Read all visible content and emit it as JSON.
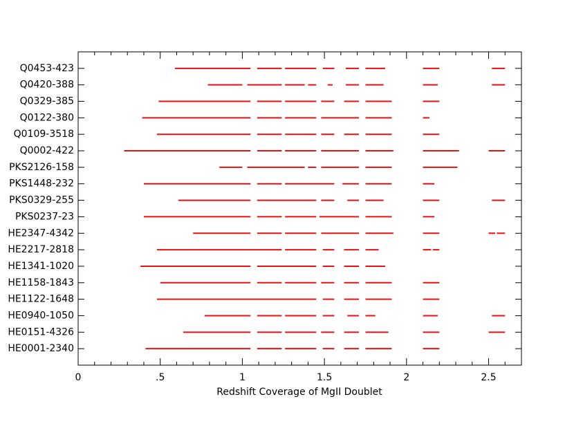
{
  "chart_data": {
    "type": "range",
    "xlabel": "Redshift Coverage of MgII Doublet",
    "color": "#e81010",
    "categories": [
      "Q0453-423",
      "Q0420-388",
      "Q0329-385",
      "Q0122-380",
      "Q0109-3518",
      "Q0002-422",
      "PKS2126-158",
      "PKS1448-232",
      "PKS0329-255",
      "PKS0237-23",
      "HE2347-4342",
      "HE2217-2818",
      "HE1341-1020",
      "HE1158-1843",
      "HE1122-1648",
      "HE0940-1050",
      "HE0151-4326",
      "HE0001-2340"
    ],
    "values": [
      [
        [
          0.59,
          1.05
        ],
        [
          1.09,
          1.24
        ],
        [
          1.26,
          1.45
        ],
        [
          1.49,
          1.56
        ],
        [
          1.63,
          1.71
        ],
        [
          1.75,
          1.87
        ],
        [
          2.1,
          2.2
        ],
        [
          2.52,
          2.6
        ]
      ],
      [
        [
          0.79,
          1.0
        ],
        [
          1.03,
          1.24
        ],
        [
          1.26,
          1.38
        ],
        [
          1.4,
          1.45
        ],
        [
          1.52,
          1.55
        ],
        [
          1.63,
          1.71
        ],
        [
          1.75,
          1.86
        ],
        [
          2.1,
          2.19
        ],
        [
          2.52,
          2.6
        ]
      ],
      [
        [
          0.49,
          1.05
        ],
        [
          1.09,
          1.24
        ],
        [
          1.26,
          1.45
        ],
        [
          1.48,
          1.56
        ],
        [
          1.62,
          1.71
        ],
        [
          1.75,
          1.91
        ],
        [
          2.1,
          2.2
        ]
      ],
      [
        [
          0.39,
          1.05
        ],
        [
          1.09,
          1.24
        ],
        [
          1.26,
          1.45
        ],
        [
          1.48,
          1.71
        ],
        [
          1.75,
          1.91
        ],
        [
          2.1,
          2.14
        ]
      ],
      [
        [
          0.48,
          1.05
        ],
        [
          1.09,
          1.24
        ],
        [
          1.26,
          1.45
        ],
        [
          1.48,
          1.56
        ],
        [
          1.62,
          1.71
        ],
        [
          1.75,
          1.91
        ],
        [
          2.1,
          2.2
        ]
      ],
      [
        [
          0.28,
          1.05
        ],
        [
          1.09,
          1.24
        ],
        [
          1.26,
          1.45
        ],
        [
          1.48,
          1.71
        ],
        [
          1.75,
          1.92
        ],
        [
          2.1,
          2.32
        ],
        [
          2.5,
          2.6
        ]
      ],
      [
        [
          0.86,
          1.0
        ],
        [
          1.03,
          1.38
        ],
        [
          1.4,
          1.45
        ],
        [
          1.48,
          1.71
        ],
        [
          1.75,
          1.91
        ],
        [
          2.1,
          2.31
        ]
      ],
      [
        [
          0.4,
          1.05
        ],
        [
          1.09,
          1.24
        ],
        [
          1.26,
          1.56
        ],
        [
          1.61,
          1.71
        ],
        [
          1.75,
          1.91
        ],
        [
          2.1,
          2.17
        ]
      ],
      [
        [
          0.61,
          1.05
        ],
        [
          1.09,
          1.45
        ],
        [
          1.48,
          1.56
        ],
        [
          1.64,
          1.71
        ],
        [
          1.75,
          1.86
        ],
        [
          2.1,
          2.2
        ],
        [
          2.52,
          2.6
        ]
      ],
      [
        [
          0.4,
          1.05
        ],
        [
          1.09,
          1.24
        ],
        [
          1.26,
          1.45
        ],
        [
          1.47,
          1.71
        ],
        [
          1.75,
          1.91
        ],
        [
          2.1,
          2.17
        ]
      ],
      [
        [
          0.7,
          1.05
        ],
        [
          1.09,
          1.24
        ],
        [
          1.26,
          1.45
        ],
        [
          1.48,
          1.71
        ],
        [
          1.75,
          1.92
        ],
        [
          2.1,
          2.2
        ],
        [
          2.5,
          2.54
        ],
        [
          2.55,
          2.6
        ]
      ],
      [
        [
          0.48,
          1.24
        ],
        [
          1.26,
          1.45
        ],
        [
          1.49,
          1.56
        ],
        [
          1.62,
          1.71
        ],
        [
          1.75,
          1.83
        ],
        [
          2.1,
          2.15
        ],
        [
          2.16,
          2.2
        ]
      ],
      [
        [
          0.38,
          1.05
        ],
        [
          1.09,
          1.45
        ],
        [
          1.49,
          1.56
        ],
        [
          1.62,
          1.71
        ],
        [
          1.75,
          1.87
        ]
      ],
      [
        [
          0.5,
          1.05
        ],
        [
          1.09,
          1.24
        ],
        [
          1.26,
          1.45
        ],
        [
          1.48,
          1.56
        ],
        [
          1.62,
          1.71
        ],
        [
          1.75,
          1.91
        ],
        [
          2.1,
          2.2
        ]
      ],
      [
        [
          0.48,
          1.45
        ],
        [
          1.49,
          1.56
        ],
        [
          1.62,
          1.71
        ],
        [
          1.75,
          1.91
        ],
        [
          2.1,
          2.2
        ]
      ],
      [
        [
          0.77,
          1.05
        ],
        [
          1.09,
          1.24
        ],
        [
          1.26,
          1.45
        ],
        [
          1.49,
          1.56
        ],
        [
          1.64,
          1.71
        ],
        [
          1.75,
          1.81
        ],
        [
          2.1,
          2.19
        ],
        [
          2.52,
          2.6
        ]
      ],
      [
        [
          0.64,
          1.05
        ],
        [
          1.09,
          1.24
        ],
        [
          1.26,
          1.45
        ],
        [
          1.48,
          1.56
        ],
        [
          1.62,
          1.71
        ],
        [
          1.75,
          1.89
        ],
        [
          2.1,
          2.2
        ],
        [
          2.5,
          2.6
        ]
      ],
      [
        [
          0.41,
          1.05
        ],
        [
          1.09,
          1.24
        ],
        [
          1.26,
          1.45
        ],
        [
          1.49,
          1.56
        ],
        [
          1.62,
          1.71
        ],
        [
          1.75,
          1.91
        ],
        [
          2.1,
          2.2
        ]
      ]
    ],
    "xlim": [
      0,
      2.7
    ],
    "xticks": [
      0,
      {
        "value": 0.5,
        "label": ".5"
      },
      1,
      1.5,
      2,
      2.5
    ],
    "xminorticks": [
      0.1,
      0.2,
      0.3,
      0.4,
      0.6,
      0.7,
      0.8,
      0.9,
      1.1,
      1.2,
      1.3,
      1.4,
      1.6,
      1.7,
      1.8,
      1.9,
      2.1,
      2.2,
      2.3,
      2.4,
      2.6
    ]
  }
}
